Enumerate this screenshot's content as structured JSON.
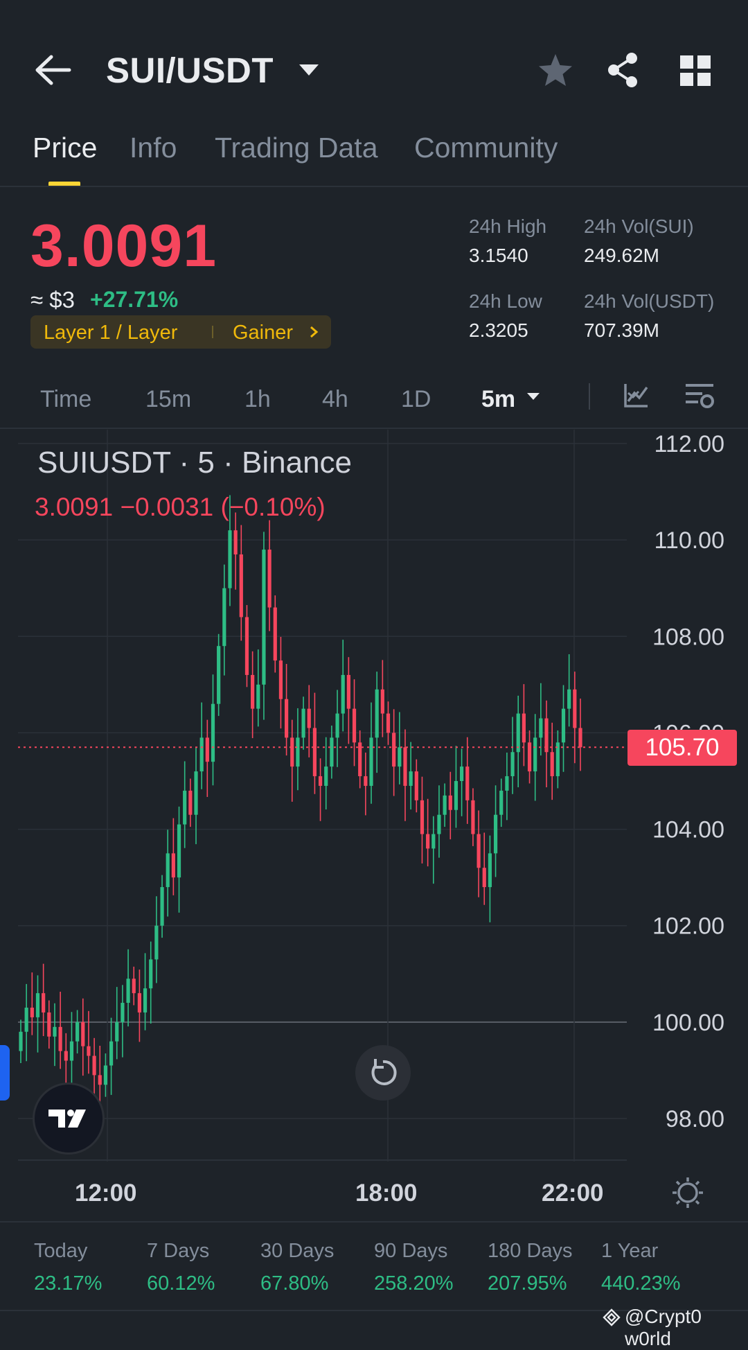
{
  "header": {
    "pair": "SUI/USDT",
    "icons": [
      "back-arrow-icon",
      "caret-down-icon",
      "star-icon",
      "share-icon",
      "grid-icon"
    ]
  },
  "tabs": [
    {
      "label": "Price",
      "active": true
    },
    {
      "label": "Info",
      "active": false
    },
    {
      "label": "Trading Data",
      "active": false
    },
    {
      "label": "Community",
      "active": false
    }
  ],
  "ticker": {
    "last_price": "3.0091",
    "usd_approx": "≈ $3",
    "change_pct": "+27.71%",
    "tag_left": "Layer 1 / Layer",
    "tag_right": "Gainer",
    "high_label": "24h High",
    "high_value": "3.1540",
    "vol_base_label": "24h Vol(SUI)",
    "vol_base_value": "249.62M",
    "low_label": "24h Low",
    "low_value": "2.3205",
    "vol_quote_label": "24h Vol(USDT)",
    "vol_quote_value": "707.39M"
  },
  "intervals": [
    {
      "label": "Time"
    },
    {
      "label": "15m"
    },
    {
      "label": "1h"
    },
    {
      "label": "4h"
    },
    {
      "label": "1D"
    },
    {
      "label": "5m",
      "selected": true
    }
  ],
  "chart_legend": {
    "title": "SUIUSDT · 5 · Binance",
    "values": "3.0091  −0.0031 (−0.10%)"
  },
  "current_price_tag": "105.70",
  "colors": {
    "up": "#2ebd85",
    "down": "#f6465d",
    "accent": "#fcd535",
    "bg": "#1e2329"
  },
  "chart_data": {
    "type": "candlestick",
    "y_ticks": [
      "112.00",
      "110.00",
      "108.00",
      "106.00",
      "104.00",
      "102.00",
      "100.00",
      "98.00"
    ],
    "ylim": [
      96.2,
      112.3
    ],
    "x_ticks": [
      "12:00",
      "18:00",
      "22:00"
    ],
    "last_price_line": 105.7,
    "baseline": 100.0,
    "closes": [
      99.8,
      100.3,
      100.1,
      100.6,
      100.2,
      99.7,
      99.9,
      99.4,
      99.2,
      99.6,
      100.0,
      99.5,
      99.3,
      98.9,
      98.7,
      99.1,
      99.6,
      100.0,
      100.4,
      100.9,
      100.6,
      100.2,
      100.7,
      101.3,
      102.0,
      102.8,
      103.5,
      103.0,
      104.1,
      104.8,
      104.3,
      105.2,
      105.9,
      105.4,
      106.6,
      107.8,
      109.0,
      110.2,
      109.7,
      108.4,
      107.2,
      106.5,
      107.0,
      109.8,
      108.6,
      107.5,
      106.7,
      105.9,
      105.3,
      105.9,
      106.5,
      106.1,
      105.1,
      104.9,
      105.3,
      105.9,
      106.4,
      107.2,
      106.5,
      105.8,
      105.1,
      104.9,
      105.9,
      106.9,
      106.4,
      106.0,
      105.3,
      105.7,
      104.9,
      105.2,
      104.6,
      103.9,
      103.6,
      103.9,
      104.3,
      104.7,
      104.4,
      105.0,
      105.3,
      104.6,
      103.9,
      103.2,
      102.8,
      103.5,
      104.3,
      104.8,
      105.1,
      105.6,
      106.4,
      105.8,
      105.2,
      105.9,
      106.3,
      105.6,
      105.1,
      105.8,
      106.5,
      106.9,
      106.1,
      105.7
    ]
  },
  "performance": [
    {
      "label": "Today",
      "value": "23.17%"
    },
    {
      "label": "7 Days",
      "value": "60.12%"
    },
    {
      "label": "30 Days",
      "value": "67.80%"
    },
    {
      "label": "90 Days",
      "value": "258.20%"
    },
    {
      "label": "180 Days",
      "value": "207.95%"
    },
    {
      "label": "1 Year",
      "value": "440.23%"
    }
  ],
  "watermark": "@Crypt0 w0rld"
}
